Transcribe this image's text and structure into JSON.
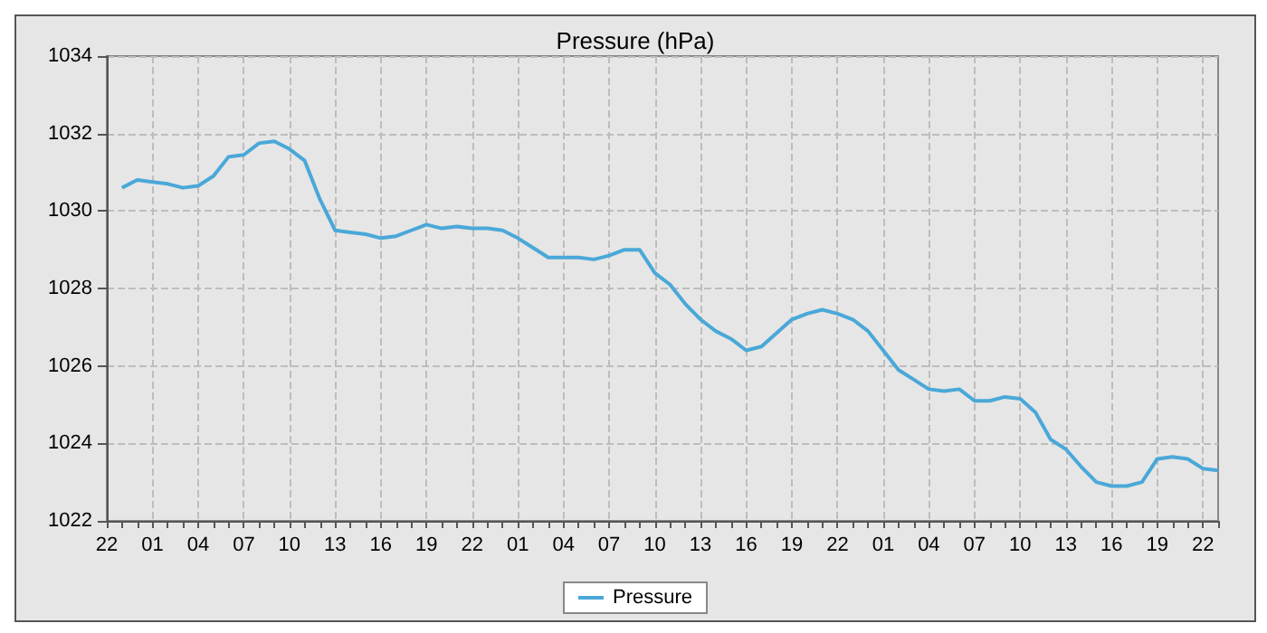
{
  "chart_data": {
    "type": "line",
    "title": "Pressure (hPa)",
    "categories": [
      "22",
      null,
      null,
      "01",
      null,
      null,
      "04",
      null,
      null,
      "07",
      null,
      null,
      "10",
      null,
      null,
      "13",
      null,
      null,
      "16",
      null,
      null,
      "19",
      null,
      null,
      "22",
      null,
      null,
      "01",
      null,
      null,
      "04",
      null,
      null,
      "07",
      null,
      null,
      "10",
      null,
      null,
      "13",
      null,
      null,
      "16",
      null,
      null,
      "19",
      null,
      null,
      "22",
      null,
      null,
      "01",
      null,
      null,
      "04",
      null,
      null,
      "07",
      null,
      null,
      "10",
      null,
      null,
      "13",
      null,
      null,
      "16",
      null,
      null,
      "19",
      null,
      null,
      "22",
      null
    ],
    "series": [
      {
        "name": "Pressure",
        "color": "#4aa8d8",
        "values": [
          null,
          1030.6,
          1030.8,
          1030.75,
          1030.7,
          1030.6,
          1030.65,
          1030.9,
          1031.4,
          1031.45,
          1031.75,
          1031.8,
          1031.6,
          1031.3,
          1030.3,
          1029.5,
          1029.45,
          1029.4,
          1029.3,
          1029.35,
          1029.5,
          1029.65,
          1029.55,
          1029.6,
          1029.55,
          1029.55,
          1029.5,
          1029.3,
          1029.05,
          1028.8,
          1028.8,
          1028.8,
          1028.75,
          1028.85,
          1029.0,
          1029.0,
          1028.4,
          1028.1,
          1027.6,
          1027.2,
          1026.9,
          1026.7,
          1026.4,
          1026.5,
          1026.85,
          1027.2,
          1027.35,
          1027.45,
          1027.35,
          1027.2,
          1026.9,
          1026.4,
          1025.9,
          1025.65,
          1025.4,
          1025.35,
          1025.4,
          1025.1,
          1025.1,
          1025.2,
          1025.15,
          1024.8,
          1024.1,
          1023.85,
          1023.4,
          1023.0,
          1022.9,
          1022.9,
          1023.0,
          1023.6,
          1023.65,
          1023.6,
          1023.35,
          1023.3
        ]
      }
    ],
    "ylim": [
      1022,
      1034
    ],
    "yticks": [
      1022,
      1024,
      1026,
      1028,
      1030,
      1032,
      1034
    ],
    "grid": true,
    "legend": "bottom",
    "marker": "none",
    "line_style": "solid"
  }
}
